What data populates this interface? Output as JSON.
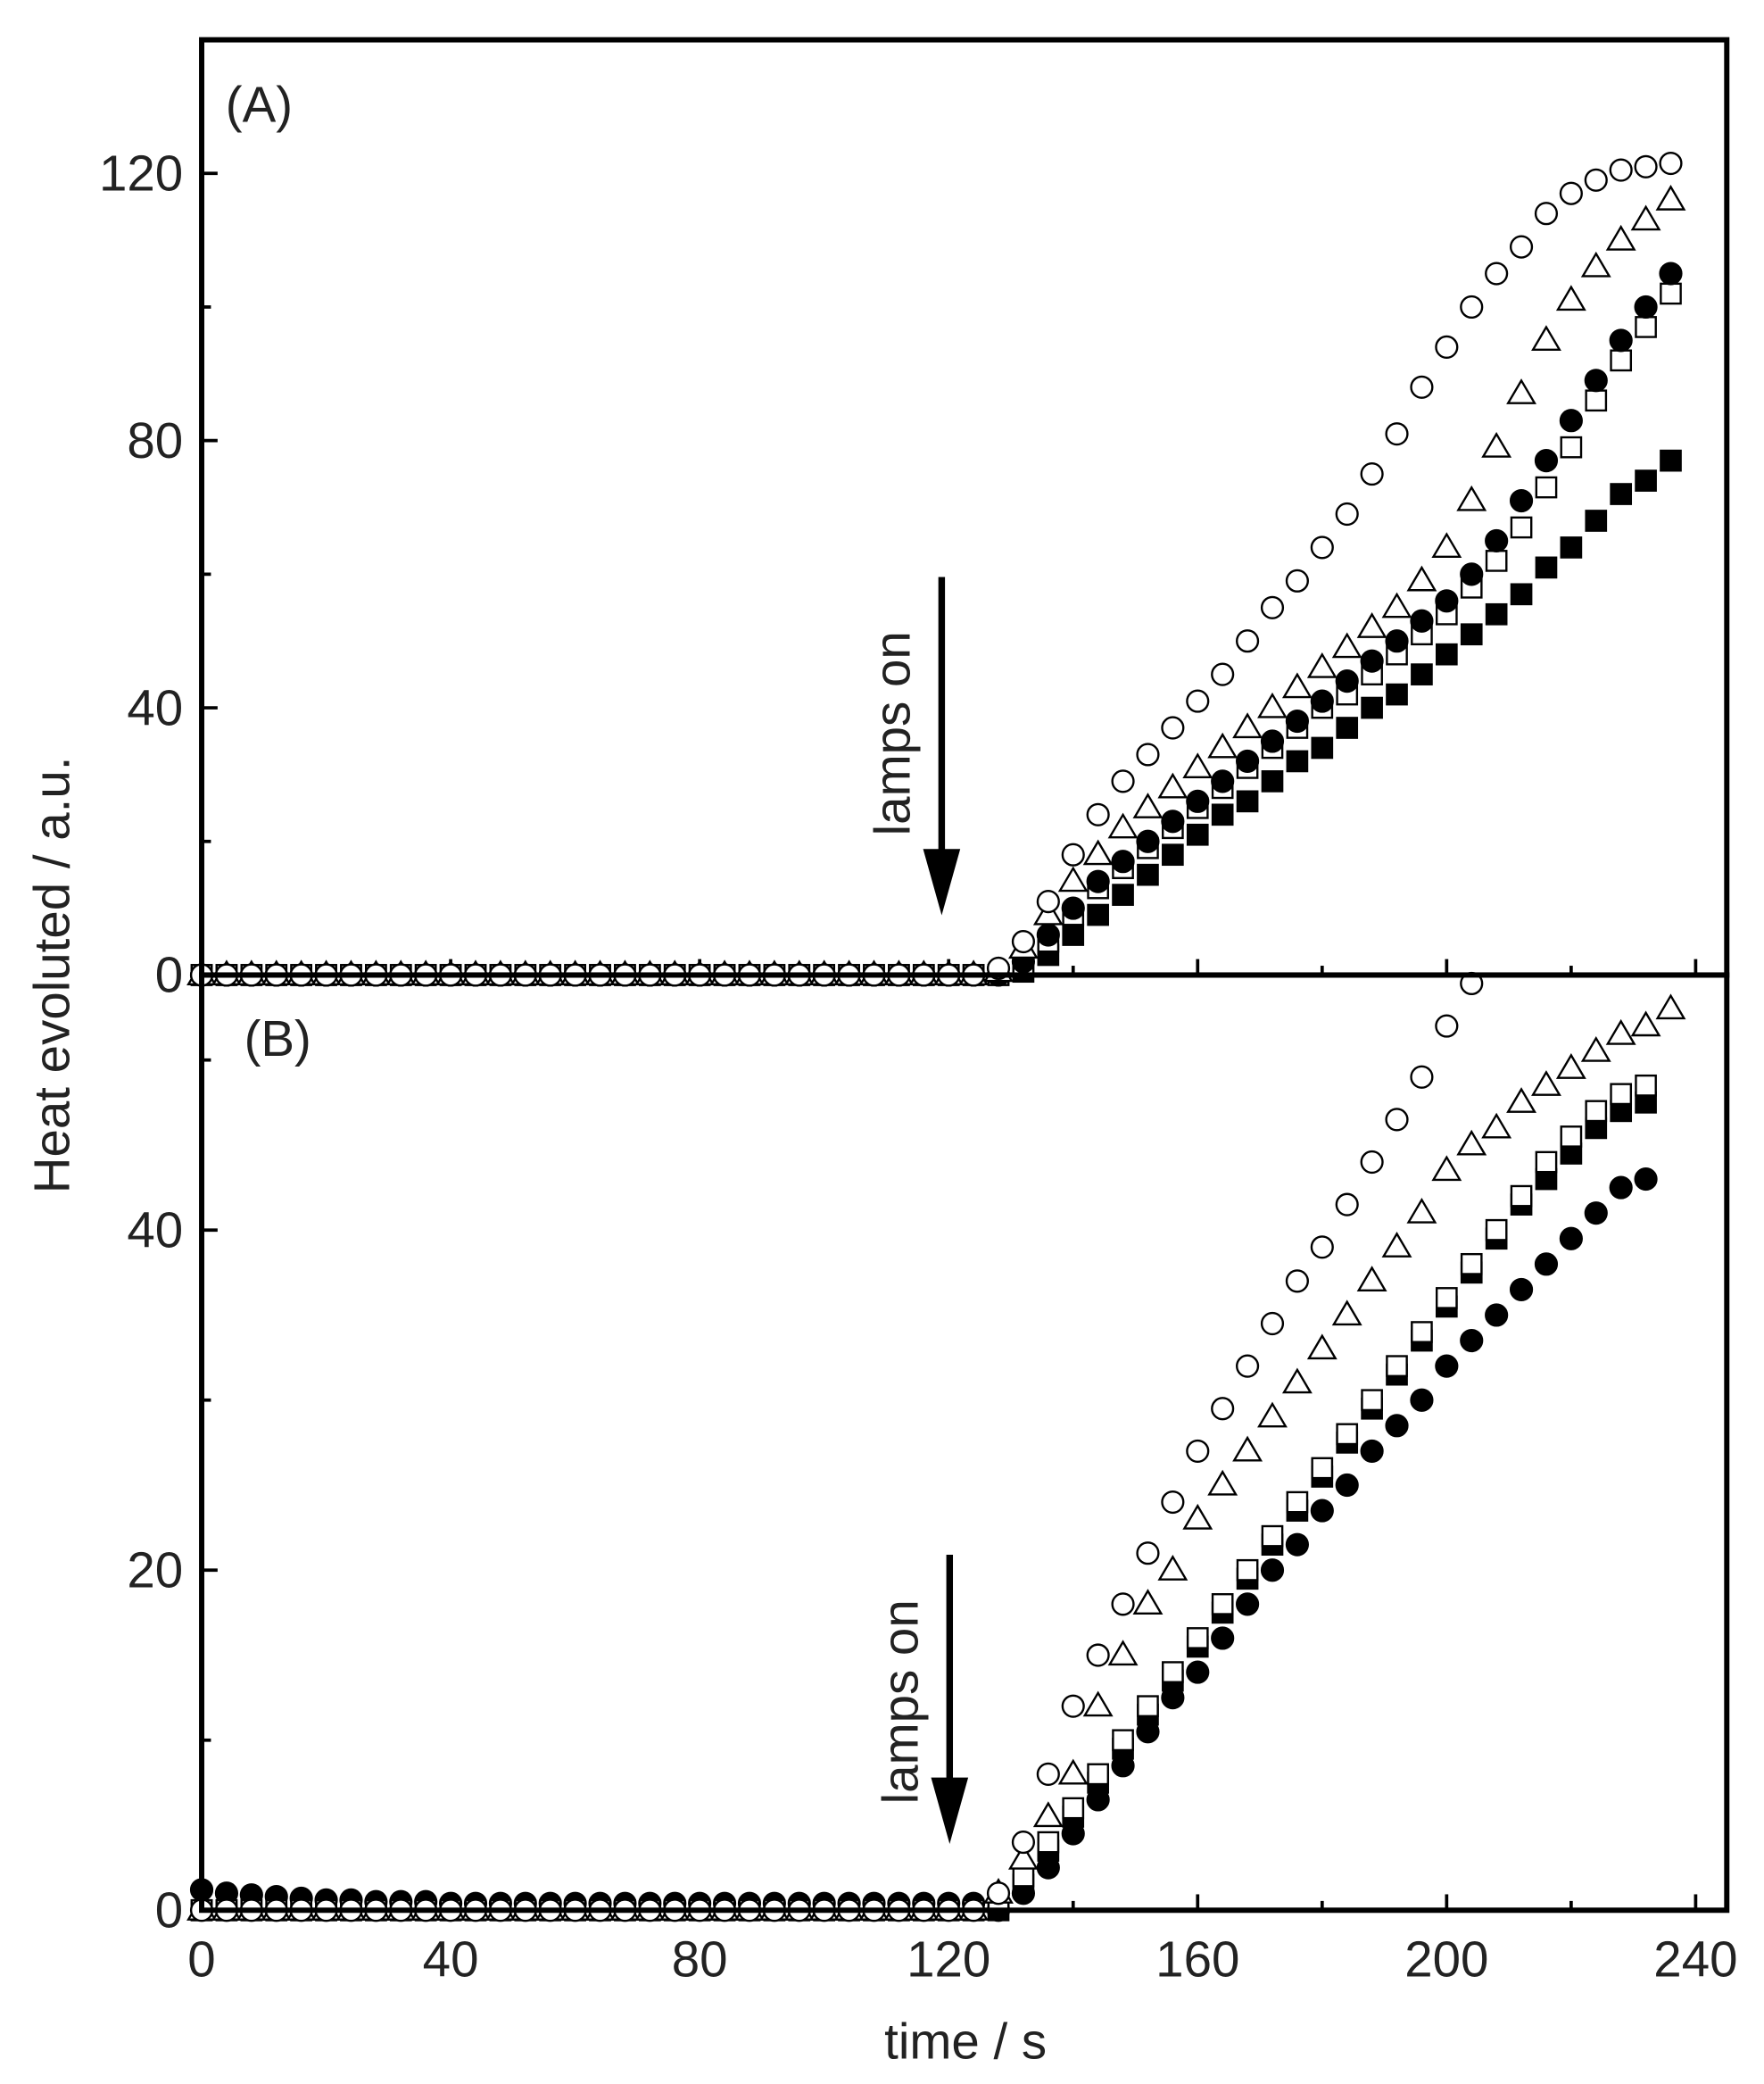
{
  "chart_data": [
    {
      "type": "scatter",
      "title": "(A)",
      "ylabel": "Heat evoluted / a.u.",
      "annotation": "lamps on",
      "xlim": [
        0,
        245
      ],
      "ylim": [
        0,
        140
      ],
      "xticks": [
        0,
        40,
        80,
        120,
        160,
        200,
        240
      ],
      "yticks": [
        0,
        40,
        80,
        120
      ],
      "x_minor_ticks": [
        20,
        60,
        100,
        140,
        180,
        220
      ],
      "y_minor_ticks": [
        20,
        60,
        100
      ],
      "x": [
        0,
        4,
        8,
        12,
        16,
        20,
        24,
        28,
        32,
        36,
        40,
        44,
        48,
        52,
        56,
        60,
        64,
        68,
        72,
        76,
        80,
        84,
        88,
        92,
        96,
        100,
        104,
        108,
        112,
        116,
        120,
        124,
        128,
        132,
        136,
        140,
        144,
        148,
        152,
        156,
        160,
        164,
        168,
        172,
        176,
        180,
        184,
        188,
        192,
        196,
        200,
        204,
        208,
        212,
        216,
        220,
        224,
        228,
        232,
        236
      ],
      "series": [
        {
          "marker": "square",
          "filled": true,
          "color": "#000000",
          "values": [
            0,
            0,
            0,
            0,
            0,
            0,
            0,
            0,
            0,
            0,
            0,
            0,
            0,
            0,
            0,
            0,
            0,
            0,
            0,
            0,
            0,
            0,
            0,
            0,
            0,
            0,
            0,
            0,
            0,
            0,
            0,
            0,
            0,
            0.5,
            3,
            6,
            9,
            12,
            15,
            18,
            21,
            24,
            26,
            29,
            32,
            34,
            37,
            40,
            42,
            45,
            48,
            51,
            54,
            57,
            61,
            64,
            68,
            72,
            74,
            77
          ]
        },
        {
          "marker": "square",
          "filled": false,
          "color": "#000000",
          "values": [
            0,
            0,
            0,
            0,
            0,
            0,
            0,
            0,
            0,
            0,
            0,
            0,
            0,
            0,
            0,
            0,
            0,
            0,
            0,
            0,
            0,
            0,
            0,
            0,
            0,
            0,
            0,
            0,
            0,
            0,
            0,
            0,
            0,
            1.5,
            5,
            9,
            13,
            16,
            19,
            22,
            25,
            28,
            31,
            34,
            37,
            40,
            42,
            45,
            48,
            51,
            54,
            58,
            62,
            67,
            73,
            79,
            86,
            92,
            97,
            102
          ]
        },
        {
          "marker": "circle",
          "filled": true,
          "color": "#000000",
          "values": [
            0,
            0,
            0,
            0,
            0,
            0,
            0,
            0,
            0,
            0,
            0,
            0,
            0,
            0,
            0,
            0,
            0,
            0,
            0,
            0,
            0,
            0,
            0,
            0,
            0,
            0,
            0,
            0,
            0,
            0,
            0,
            0,
            0,
            2,
            6,
            10,
            14,
            17,
            20,
            23,
            26,
            29,
            32,
            35,
            38,
            41,
            44,
            47,
            50,
            53,
            56,
            60,
            65,
            71,
            77,
            83,
            89,
            95,
            100,
            105
          ]
        },
        {
          "marker": "triangle",
          "filled": false,
          "color": "#000000",
          "values": [
            0,
            0,
            0,
            0,
            0,
            0,
            0,
            0,
            0,
            0,
            0,
            0,
            0,
            0,
            0,
            0,
            0,
            0,
            0,
            0,
            0,
            0,
            0,
            0,
            0,
            0,
            0,
            0,
            0,
            0,
            0,
            0,
            0.5,
            4,
            9,
            14,
            18,
            22,
            25,
            28,
            31,
            34,
            37,
            40,
            43,
            46,
            49,
            52,
            55,
            59,
            64,
            71,
            79,
            87,
            95,
            101,
            106,
            110,
            113,
            116
          ]
        },
        {
          "marker": "circle",
          "filled": false,
          "color": "#000000",
          "values": [
            0,
            0,
            0,
            0,
            0,
            0,
            0,
            0,
            0,
            0,
            0,
            0,
            0,
            0,
            0,
            0,
            0,
            0,
            0,
            0,
            0,
            0,
            0,
            0,
            0,
            0,
            0,
            0,
            0,
            0,
            0,
            0,
            1,
            5,
            11,
            18,
            24,
            29,
            33,
            37,
            41,
            45,
            50,
            55,
            59,
            64,
            69,
            75,
            81,
            88,
            94,
            100,
            105,
            109,
            114,
            117,
            119,
            120.5,
            121,
            121.5
          ]
        }
      ]
    },
    {
      "type": "scatter",
      "title": "(B)",
      "xlabel": "time / s",
      "annotation": "lamps on",
      "xlim": [
        0,
        245
      ],
      "ylim": [
        0,
        55
      ],
      "xticks": [
        0,
        40,
        80,
        120,
        160,
        200,
        240
      ],
      "yticks": [
        0,
        20,
        40
      ],
      "x_minor_ticks": [
        20,
        60,
        100,
        140,
        180,
        220
      ],
      "y_minor_ticks": [
        10,
        30,
        50
      ],
      "x": [
        0,
        4,
        8,
        12,
        16,
        20,
        24,
        28,
        32,
        36,
        40,
        44,
        48,
        52,
        56,
        60,
        64,
        68,
        72,
        76,
        80,
        84,
        88,
        92,
        96,
        100,
        104,
        108,
        112,
        116,
        120,
        124,
        128,
        132,
        136,
        140,
        144,
        148,
        152,
        156,
        160,
        164,
        168,
        172,
        176,
        180,
        184,
        188,
        192,
        196,
        200,
        204,
        208,
        212,
        216,
        220,
        224,
        228,
        232,
        236
      ],
      "series": [
        {
          "marker": "circle",
          "filled": true,
          "color": "#000000",
          "values": [
            1.2,
            1,
            0.9,
            0.8,
            0.7,
            0.6,
            0.6,
            0.5,
            0.5,
            0.5,
            0.4,
            0.4,
            0.4,
            0.4,
            0.4,
            0.4,
            0.4,
            0.4,
            0.4,
            0.4,
            0.4,
            0.4,
            0.4,
            0.4,
            0.4,
            0.4,
            0.4,
            0.4,
            0.4,
            0.4,
            0.4,
            0.4,
            0,
            1,
            2.5,
            4.5,
            6.5,
            8.5,
            10.5,
            12.5,
            14,
            16,
            18,
            20,
            21.5,
            23.5,
            25,
            27,
            28.5,
            30,
            32,
            33.5,
            35,
            36.5,
            38,
            39.5,
            41,
            42.5,
            43,
            null
          ]
        },
        {
          "marker": "square",
          "filled": true,
          "color": "#000000",
          "values": [
            0,
            0,
            0,
            0,
            0,
            0,
            0,
            0,
            0,
            0,
            0,
            0,
            0,
            0,
            0,
            0,
            0,
            0,
            0,
            0,
            0,
            0,
            0,
            0,
            0,
            0,
            0,
            0,
            0,
            0,
            0,
            0,
            0,
            1.5,
            3.5,
            5.5,
            7.5,
            9.5,
            11.5,
            13.5,
            15.5,
            17.5,
            19.5,
            21.5,
            23.5,
            25.5,
            27.5,
            29.5,
            31.5,
            33.5,
            35.5,
            37.5,
            39.5,
            41.5,
            43,
            44.5,
            46,
            47,
            47.5,
            null
          ]
        },
        {
          "marker": "square",
          "filled": false,
          "color": "#000000",
          "values": [
            0,
            0,
            0,
            0,
            0,
            0,
            0,
            0,
            0,
            0,
            0,
            0,
            0,
            0,
            0,
            0,
            0,
            0,
            0,
            0,
            0,
            0,
            0,
            0,
            0,
            0,
            0,
            0,
            0,
            0,
            0,
            0,
            0.5,
            2,
            4,
            6,
            8,
            10,
            12,
            14,
            16,
            18,
            20,
            22,
            24,
            26,
            28,
            30,
            32,
            34,
            36,
            38,
            40,
            42,
            44,
            45.5,
            47,
            48,
            48.5,
            null
          ]
        },
        {
          "marker": "triangle",
          "filled": false,
          "color": "#000000",
          "values": [
            0,
            0,
            0,
            0,
            0,
            0,
            0,
            0,
            0,
            0,
            0,
            0,
            0,
            0,
            0,
            0,
            0,
            0,
            0,
            0,
            0,
            0,
            0,
            0,
            0,
            0,
            0,
            0,
            0,
            0,
            0,
            0,
            1,
            3,
            5.5,
            8,
            12,
            15,
            18,
            20,
            23,
            25,
            27,
            29,
            31,
            33,
            35,
            37,
            39,
            41,
            43.5,
            45,
            46,
            47.5,
            48.5,
            49.5,
            50.5,
            51.5,
            52,
            53
          ]
        },
        {
          "marker": "circle",
          "filled": false,
          "color": "#000000",
          "values": [
            0,
            0,
            0,
            0,
            0,
            0,
            0,
            0,
            0,
            0,
            0,
            0,
            0,
            0,
            0,
            0,
            0,
            0,
            0,
            0,
            0,
            0,
            0,
            0,
            0,
            0,
            0,
            0,
            0,
            0,
            0,
            0,
            1,
            4,
            8,
            12,
            15,
            18,
            21,
            24,
            27,
            29.5,
            32,
            34.5,
            37,
            39,
            41.5,
            44,
            46.5,
            49,
            52,
            54.5,
            null,
            null,
            null,
            null,
            null,
            null,
            null,
            null
          ]
        }
      ]
    }
  ]
}
